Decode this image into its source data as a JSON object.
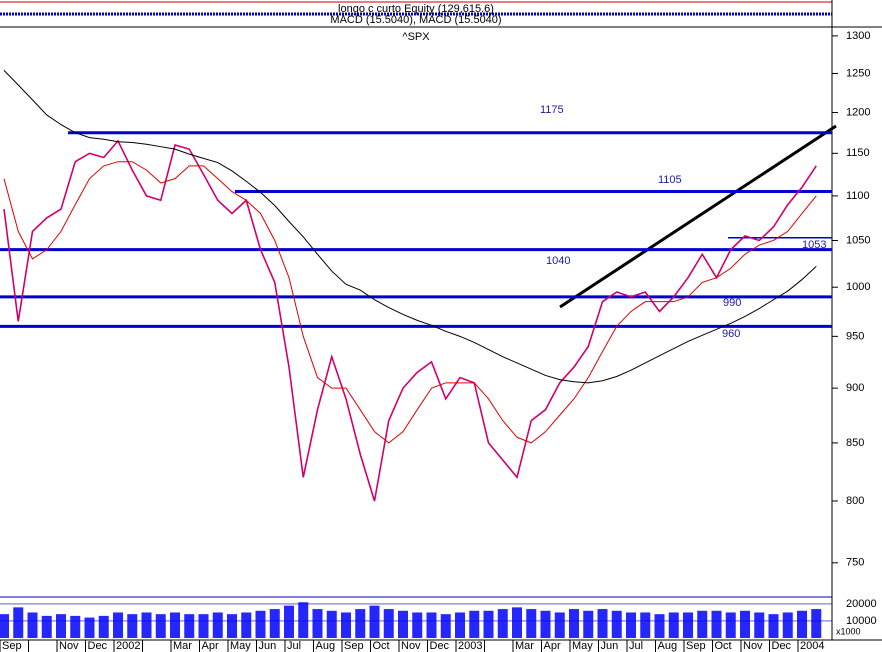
{
  "header": {
    "lines": [
      "longo c curto Equity (129,615.6)",
      "MACD (15.5040), MACD (15.5040)"
    ]
  },
  "chart_data": {
    "type": "line",
    "title": "^SPX",
    "categories": [
      "Sep",
      null,
      null,
      null,
      "Nov",
      null,
      "Dec",
      null,
      "2002",
      null,
      null,
      null,
      "Mar",
      null,
      "Apr",
      null,
      "May",
      null,
      "Jun",
      null,
      "Jul",
      null,
      "Aug",
      null,
      "Sep",
      null,
      "Oct",
      null,
      "Nov",
      null,
      "Dec",
      null,
      "2003",
      null,
      null,
      null,
      "Mar",
      null,
      "Apr",
      null,
      "May",
      null,
      "Jun",
      null,
      "Jul",
      null,
      "Aug",
      null,
      "Sep",
      null,
      "Oct",
      null,
      "Nov",
      null,
      "Dec",
      null,
      "2004",
      null
    ],
    "series": [
      {
        "color": "#d0006f",
        "values": [
          1085,
          965,
          1060,
          1075,
          1085,
          1140,
          1150,
          1145,
          1165,
          1130,
          1100,
          1095,
          1160,
          1155,
          1125,
          1095,
          1080,
          1095,
          1040,
          1005,
          920,
          820,
          880,
          930,
          890,
          840,
          800,
          870,
          900,
          915,
          925,
          890,
          910,
          905,
          850,
          835,
          820,
          870,
          880,
          905,
          920,
          940,
          985,
          995,
          990,
          995,
          975,
          990,
          1010,
          1035,
          1010,
          1040,
          1055,
          1050,
          1065,
          1090,
          1110,
          1135
        ]
      },
      {
        "color": "#e00000",
        "values": [
          1120,
          1060,
          1030,
          1040,
          1060,
          1090,
          1120,
          1135,
          1140,
          1140,
          1130,
          1115,
          1120,
          1135,
          1135,
          1120,
          1105,
          1095,
          1080,
          1050,
          1010,
          950,
          910,
          900,
          900,
          880,
          860,
          850,
          860,
          880,
          900,
          905,
          905,
          905,
          890,
          870,
          855,
          850,
          860,
          875,
          890,
          910,
          935,
          960,
          975,
          985,
          985,
          985,
          990,
          1005,
          1010,
          1020,
          1035,
          1045,
          1050,
          1060,
          1080,
          1100
        ]
      },
      {
        "color": "#000000",
        "values": [
          1254,
          1235,
          1216,
          1197,
          1185,
          1175,
          1169,
          1167,
          1164,
          1163,
          1161,
          1158,
          1155,
          1149,
          1144,
          1139,
          1129,
          1117,
          1104,
          1089,
          1071,
          1054,
          1035,
          1017,
          1003,
          997,
          987,
          979,
          972,
          966,
          961,
          955,
          950,
          944,
          937,
          930,
          924,
          918,
          912,
          908,
          906,
          905,
          907,
          911,
          917,
          924,
          931,
          938,
          945,
          951,
          957,
          963,
          970,
          978,
          987,
          996,
          1008,
          1022
        ]
      }
    ],
    "ylim": [
      729,
      1308
    ],
    "log_scale": true,
    "yticks": [
      1300,
      1250,
      1200,
      1150,
      1100,
      1050,
      1000,
      950,
      900,
      850,
      800,
      750
    ],
    "levels": [
      1175,
      1105,
      1040,
      990,
      960,
      1053
    ],
    "level_color": "#0000d0",
    "volume": {
      "color": "#0000ff",
      "ylim": [
        0,
        23500
      ],
      "yticks": [
        10000,
        20000
      ],
      "unit_label": "x1000",
      "values": [
        14000,
        18000,
        15000,
        13000,
        14000,
        13000,
        12000,
        13000,
        15000,
        14000,
        15000,
        14000,
        15000,
        14000,
        14000,
        15000,
        14000,
        15000,
        16000,
        17000,
        19000,
        21000,
        17000,
        16000,
        15000,
        17000,
        19000,
        17000,
        16000,
        15000,
        15000,
        14000,
        15000,
        16000,
        16000,
        17000,
        18000,
        17000,
        16000,
        15000,
        17000,
        16000,
        17000,
        16000,
        15000,
        15000,
        14000,
        15000,
        15000,
        16000,
        16000,
        15000,
        16000,
        15000,
        14000,
        15000,
        16000,
        17000
      ]
    }
  }
}
